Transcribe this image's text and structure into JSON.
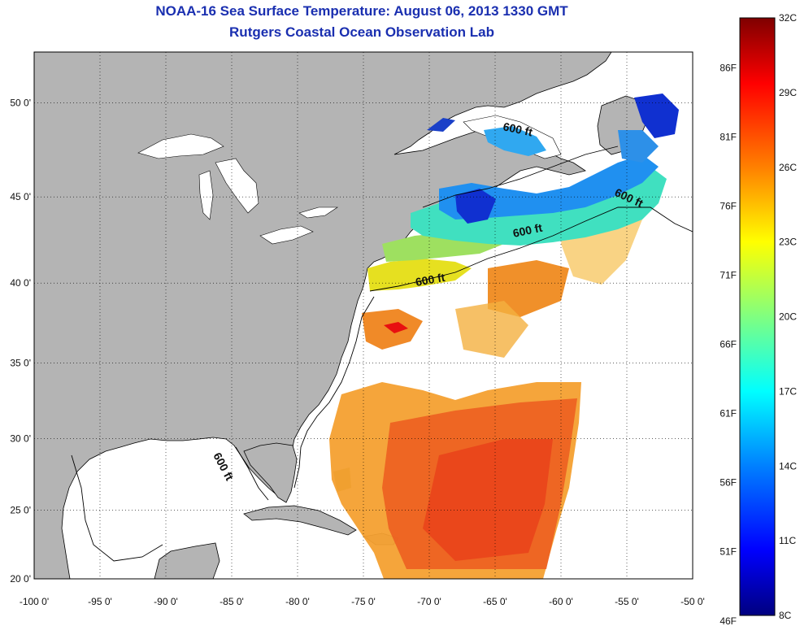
{
  "header": {
    "title": "NOAA-16 Sea Surface Temperature:  August 06, 2013 1330 GMT",
    "subtitle": "Rutgers Coastal Ocean Observation Lab"
  },
  "map": {
    "lon_ticks": [
      "-100 0'",
      "-95 0'",
      "-90 0'",
      "-85 0'",
      "-80 0'",
      "-75 0'",
      "-70 0'",
      "-65 0'",
      "-60 0'",
      "-55 0'",
      "-50 0'"
    ],
    "lat_ticks": [
      "20 0'",
      "25 0'",
      "30 0'",
      "35 0'",
      "40 0'",
      "45 0'",
      "50 0'"
    ],
    "contour_label": "600 ft",
    "land_color": "#b4b4b4",
    "ocean_color": "#ffffff",
    "lon_range": [
      -100,
      -50
    ],
    "lat_range": [
      20,
      52.5
    ]
  },
  "colorbar": {
    "celsius_labels": [
      "32C",
      "29C",
      "26C",
      "23C",
      "20C",
      "17C",
      "14C",
      "11C",
      "8C"
    ],
    "fahrenheit_labels": [
      "86F",
      "81F",
      "76F",
      "71F",
      "66F",
      "61F",
      "56F",
      "51F",
      "46F"
    ],
    "range_c": [
      8,
      32
    ]
  }
}
